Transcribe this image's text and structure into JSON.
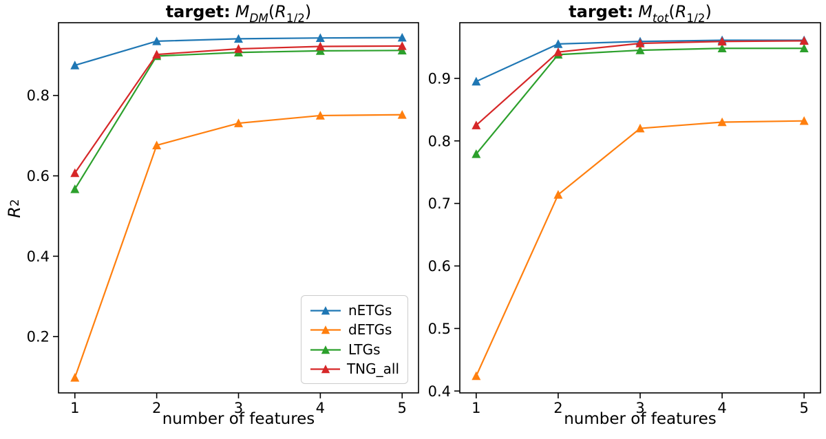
{
  "figure": {
    "background": "#ffffff"
  },
  "ylabel": {
    "symbol": "R",
    "exponent": "2"
  },
  "panels": [
    {
      "title": {
        "prefix": "target:",
        "mass_symbol": "M",
        "mass_subscript": "DM",
        "paren_open": "(",
        "radius_symbol": "R",
        "radius_subscript": "1/2",
        "paren_close": ")"
      },
      "xlabel": "number of features"
    },
    {
      "title": {
        "prefix": "target:",
        "mass_symbol": "M",
        "mass_subscript": "tot",
        "paren_open": "(",
        "radius_symbol": "R",
        "radius_subscript": "1/2",
        "paren_close": ")"
      },
      "xlabel": "number of features"
    }
  ],
  "legend": {
    "visible_on_panel": "left",
    "position": "lower right"
  },
  "chart_data": [
    {
      "type": "line",
      "title": "target: M_DM(R_1/2)",
      "xlabel": "number of features",
      "ylabel": "R^2",
      "x": [
        1,
        2,
        3,
        4,
        5
      ],
      "xticklabels": [
        "1",
        "2",
        "3",
        "4",
        "5"
      ],
      "yticks": [
        0.2,
        0.4,
        0.6,
        0.8
      ],
      "yticklabels": [
        "0.2",
        "0.4",
        "0.6",
        "0.8"
      ],
      "xlim": [
        0.8,
        5.2
      ],
      "ylim": [
        0.06,
        0.981
      ],
      "grid": false,
      "legend_position": "lower right",
      "marker": "triangle-up",
      "series": [
        {
          "name": "nETGs",
          "color": "#1f77b4",
          "values": [
            0.875,
            0.935,
            0.941,
            0.943,
            0.944
          ]
        },
        {
          "name": "dETGs",
          "color": "#ff7f0e",
          "values": [
            0.098,
            0.676,
            0.731,
            0.75,
            0.752
          ]
        },
        {
          "name": "LTGs",
          "color": "#2ca02c",
          "values": [
            0.567,
            0.898,
            0.907,
            0.911,
            0.912
          ]
        },
        {
          "name": "TNG_all",
          "color": "#d62728",
          "values": [
            0.607,
            0.902,
            0.916,
            0.922,
            0.923
          ]
        }
      ]
    },
    {
      "type": "line",
      "title": "target: M_tot(R_1/2)",
      "xlabel": "number of features",
      "ylabel": "R^2",
      "x": [
        1,
        2,
        3,
        4,
        5
      ],
      "xticklabels": [
        "1",
        "2",
        "3",
        "4",
        "5"
      ],
      "yticks": [
        0.4,
        0.5,
        0.6,
        0.7,
        0.8,
        0.9
      ],
      "yticklabels": [
        "0.4",
        "0.5",
        "0.6",
        "0.7",
        "0.8",
        "0.9"
      ],
      "xlim": [
        0.8,
        5.2
      ],
      "ylim": [
        0.397,
        0.989
      ],
      "grid": false,
      "legend_position": "none",
      "marker": "triangle-up",
      "series": [
        {
          "name": "nETGs",
          "color": "#1f77b4",
          "values": [
            0.895,
            0.955,
            0.959,
            0.961,
            0.961
          ]
        },
        {
          "name": "dETGs",
          "color": "#ff7f0e",
          "values": [
            0.424,
            0.714,
            0.82,
            0.83,
            0.832
          ]
        },
        {
          "name": "LTGs",
          "color": "#2ca02c",
          "values": [
            0.779,
            0.938,
            0.945,
            0.948,
            0.948
          ]
        },
        {
          "name": "TNG_all",
          "color": "#d62728",
          "values": [
            0.825,
            0.942,
            0.956,
            0.959,
            0.96
          ]
        }
      ]
    }
  ]
}
